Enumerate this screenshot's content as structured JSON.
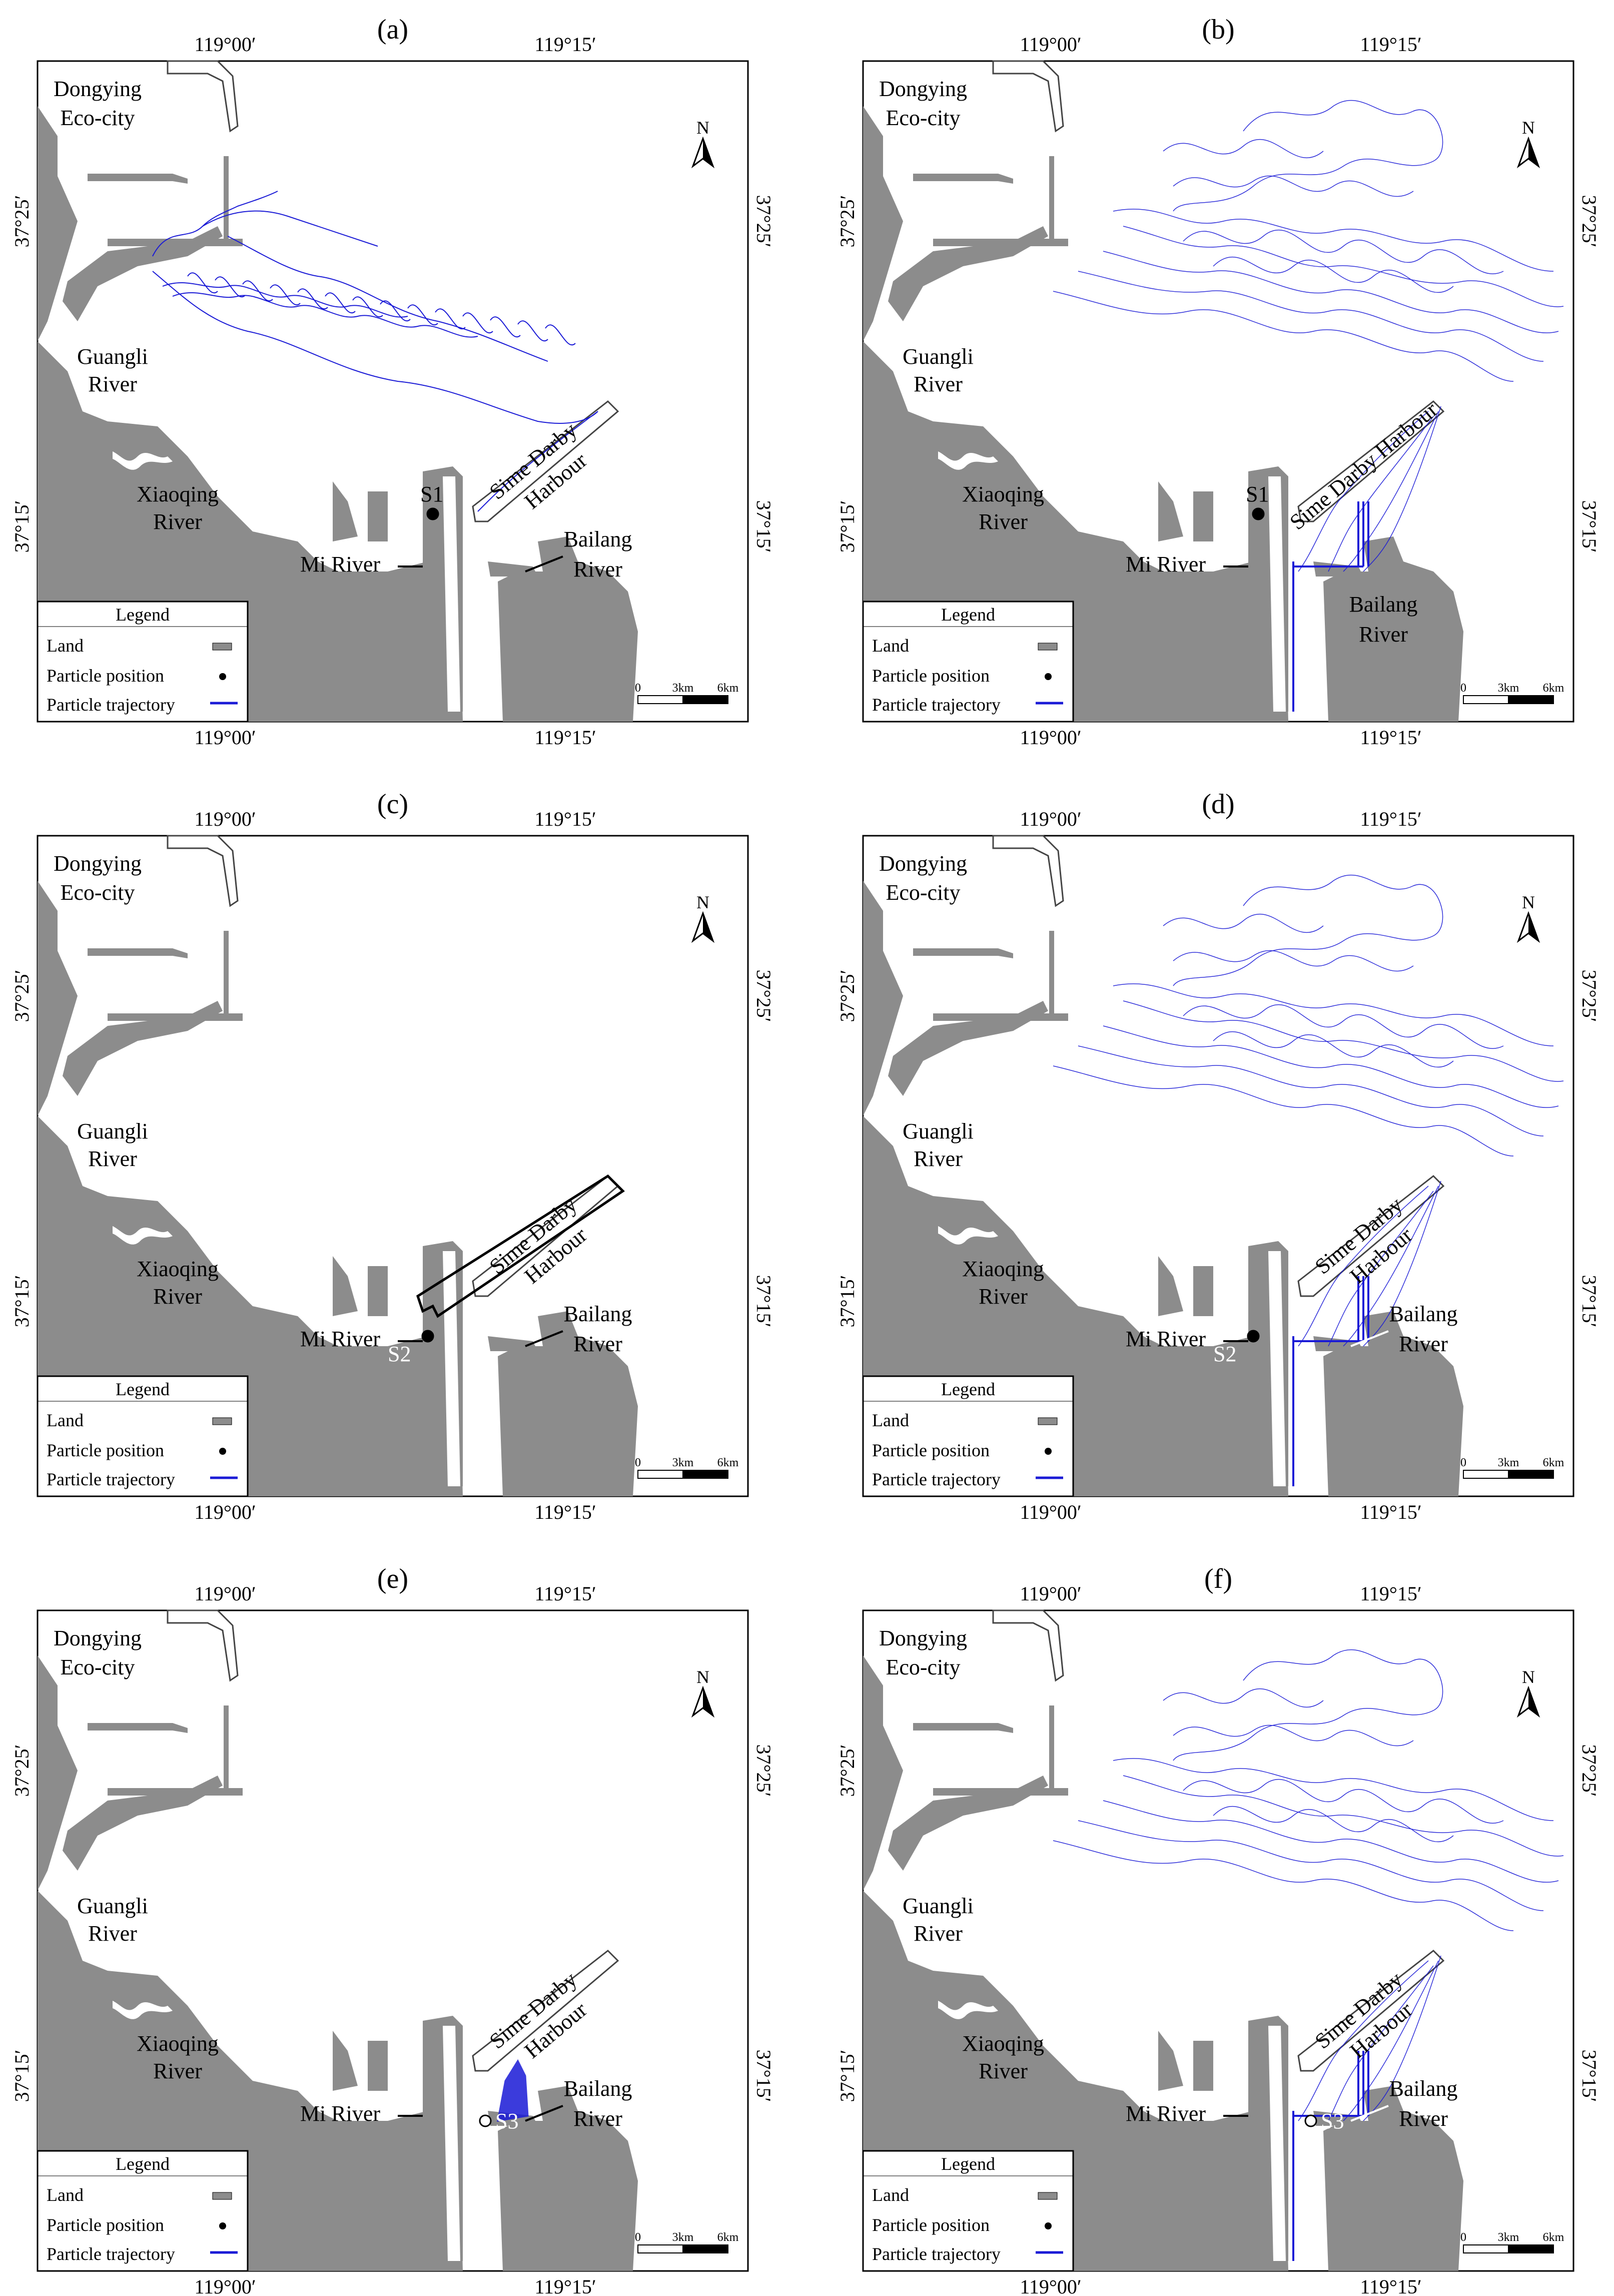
{
  "figure": {
    "panels": [
      {
        "id": "a",
        "label": "(a)",
        "station": "S1",
        "station_white": false,
        "show_bailang_top": true,
        "trajectory": "short"
      },
      {
        "id": "b",
        "label": "(b)",
        "station": "S1",
        "station_white": false,
        "show_bailang_top": false,
        "trajectory": "wide"
      },
      {
        "id": "c",
        "label": "(c)",
        "station": "S2",
        "station_white": true,
        "show_bailang_top": true,
        "trajectory": "none"
      },
      {
        "id": "d",
        "label": "(d)",
        "station": "S2",
        "station_white": true,
        "show_bailang_top": true,
        "trajectory": "wide"
      },
      {
        "id": "e",
        "label": "(e)",
        "station": "S3",
        "station_white": true,
        "show_bailang_top": true,
        "trajectory": "local"
      },
      {
        "id": "f",
        "label": "(f)",
        "station": "S3",
        "station_white": true,
        "show_bailang_top": true,
        "trajectory": "wide"
      }
    ],
    "axis_ticks": {
      "lon_left": "119°00′",
      "lon_right": "119°15′",
      "lat_top": "37°25′",
      "lat_bottom": "37°15′"
    },
    "place_labels": {
      "dongying_1": "Dongying",
      "dongying_2": "Eco-city",
      "guangli_1": "Guangli",
      "guangli_2": "River",
      "xiaoqing_1": "Xiaoqing",
      "xiaoqing_2": "River",
      "harbour_1": "Sime Darby",
      "harbour_2": "Harbour",
      "harbour_full": "Sime Darby Harbour",
      "bailang_1": "Bailang",
      "bailang_2": "River",
      "mi_river": "Mi River"
    },
    "legend": {
      "title": "Legend",
      "land": "Land",
      "particle_position": "Particle position",
      "particle_trajectory": "Particle trajectory"
    },
    "scale_bar": {
      "t0": "0",
      "t1": "3km",
      "t2": "6km"
    },
    "north_label": "N",
    "colors": {
      "land": "#8c8c8c",
      "trajectory": "#1a1ad6",
      "coast_white": "#ffffff"
    }
  }
}
